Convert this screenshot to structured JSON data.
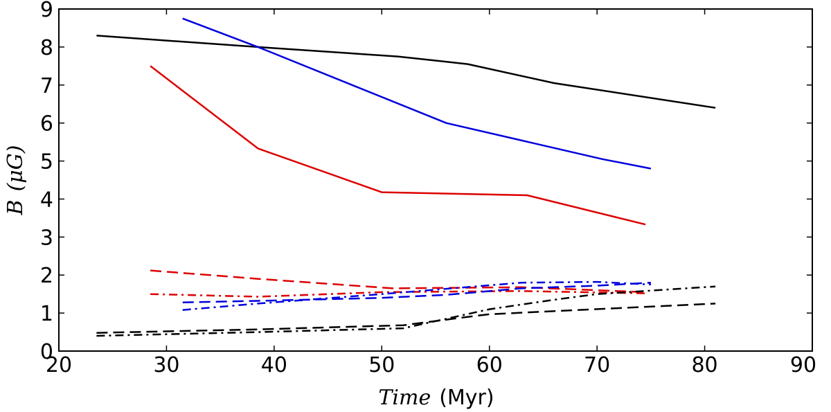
{
  "chart_data": {
    "type": "line",
    "title": "",
    "xlabel": "Time",
    "xlabel_unit": "(Myr)",
    "ylabel": "B (μG)",
    "ylabel_prefix": "B",
    "ylabel_unit": "(μG)",
    "xlim": [
      20,
      90
    ],
    "ylim": [
      0,
      9
    ],
    "xticks": [
      "20",
      "30",
      "40",
      "50",
      "60",
      "70",
      "80",
      "90"
    ],
    "yticks": [
      "0",
      "1",
      "2",
      "3",
      "4",
      "5",
      "6",
      "7",
      "8",
      "9"
    ],
    "grid": false,
    "series": [
      {
        "name": "black-solid",
        "color": "#000000",
        "dash": "solid",
        "points": [
          [
            23.5,
            8.3
          ],
          [
            38.5,
            8.0
          ],
          [
            51.5,
            7.75
          ],
          [
            58,
            7.55
          ],
          [
            66,
            7.05
          ],
          [
            81,
            6.4
          ]
        ]
      },
      {
        "name": "blue-solid",
        "color": "#0000dd",
        "dash": "solid",
        "points": [
          [
            31.5,
            8.75
          ],
          [
            38.5,
            8.0
          ],
          [
            56,
            6.0
          ],
          [
            70.5,
            5.05
          ],
          [
            75,
            4.8
          ]
        ]
      },
      {
        "name": "red-solid",
        "color": "#dd0000",
        "dash": "solid",
        "points": [
          [
            28.5,
            7.5
          ],
          [
            38.5,
            5.33
          ],
          [
            50,
            4.18
          ],
          [
            63.5,
            4.1
          ],
          [
            74.5,
            3.33
          ]
        ]
      },
      {
        "name": "red-dashed",
        "color": "#dd0000",
        "dash": "dashed",
        "points": [
          [
            28.5,
            2.12
          ],
          [
            38.5,
            1.9
          ],
          [
            51,
            1.65
          ],
          [
            63,
            1.68
          ],
          [
            74.5,
            1.55
          ]
        ]
      },
      {
        "name": "red-dotdash",
        "color": "#dd0000",
        "dash": "dashdot",
        "points": [
          [
            28.5,
            1.5
          ],
          [
            38.5,
            1.43
          ],
          [
            50,
            1.55
          ],
          [
            63,
            1.58
          ],
          [
            74.5,
            1.52
          ]
        ]
      },
      {
        "name": "blue-dashed",
        "color": "#0000dd",
        "dash": "dashed",
        "points": [
          [
            31.5,
            1.28
          ],
          [
            38.5,
            1.32
          ],
          [
            50,
            1.4
          ],
          [
            56,
            1.48
          ],
          [
            63,
            1.65
          ],
          [
            70,
            1.72
          ],
          [
            75,
            1.8
          ]
        ]
      },
      {
        "name": "blue-dotdash",
        "color": "#0000dd",
        "dash": "dashdot",
        "points": [
          [
            31.5,
            1.08
          ],
          [
            38.5,
            1.25
          ],
          [
            50,
            1.5
          ],
          [
            63,
            1.8
          ],
          [
            70,
            1.82
          ],
          [
            75,
            1.75
          ]
        ]
      },
      {
        "name": "black-dashed",
        "color": "#000000",
        "dash": "dashed",
        "points": [
          [
            23.5,
            0.48
          ],
          [
            38.5,
            0.57
          ],
          [
            52,
            0.68
          ],
          [
            58,
            0.9
          ],
          [
            60,
            0.97
          ],
          [
            66,
            1.05
          ],
          [
            81,
            1.25
          ]
        ]
      },
      {
        "name": "black-dotdash",
        "color": "#000000",
        "dash": "dashdot",
        "points": [
          [
            23.5,
            0.4
          ],
          [
            38.5,
            0.5
          ],
          [
            52,
            0.6
          ],
          [
            60,
            1.1
          ],
          [
            66,
            1.35
          ],
          [
            70,
            1.5
          ],
          [
            81,
            1.7
          ]
        ]
      }
    ]
  }
}
